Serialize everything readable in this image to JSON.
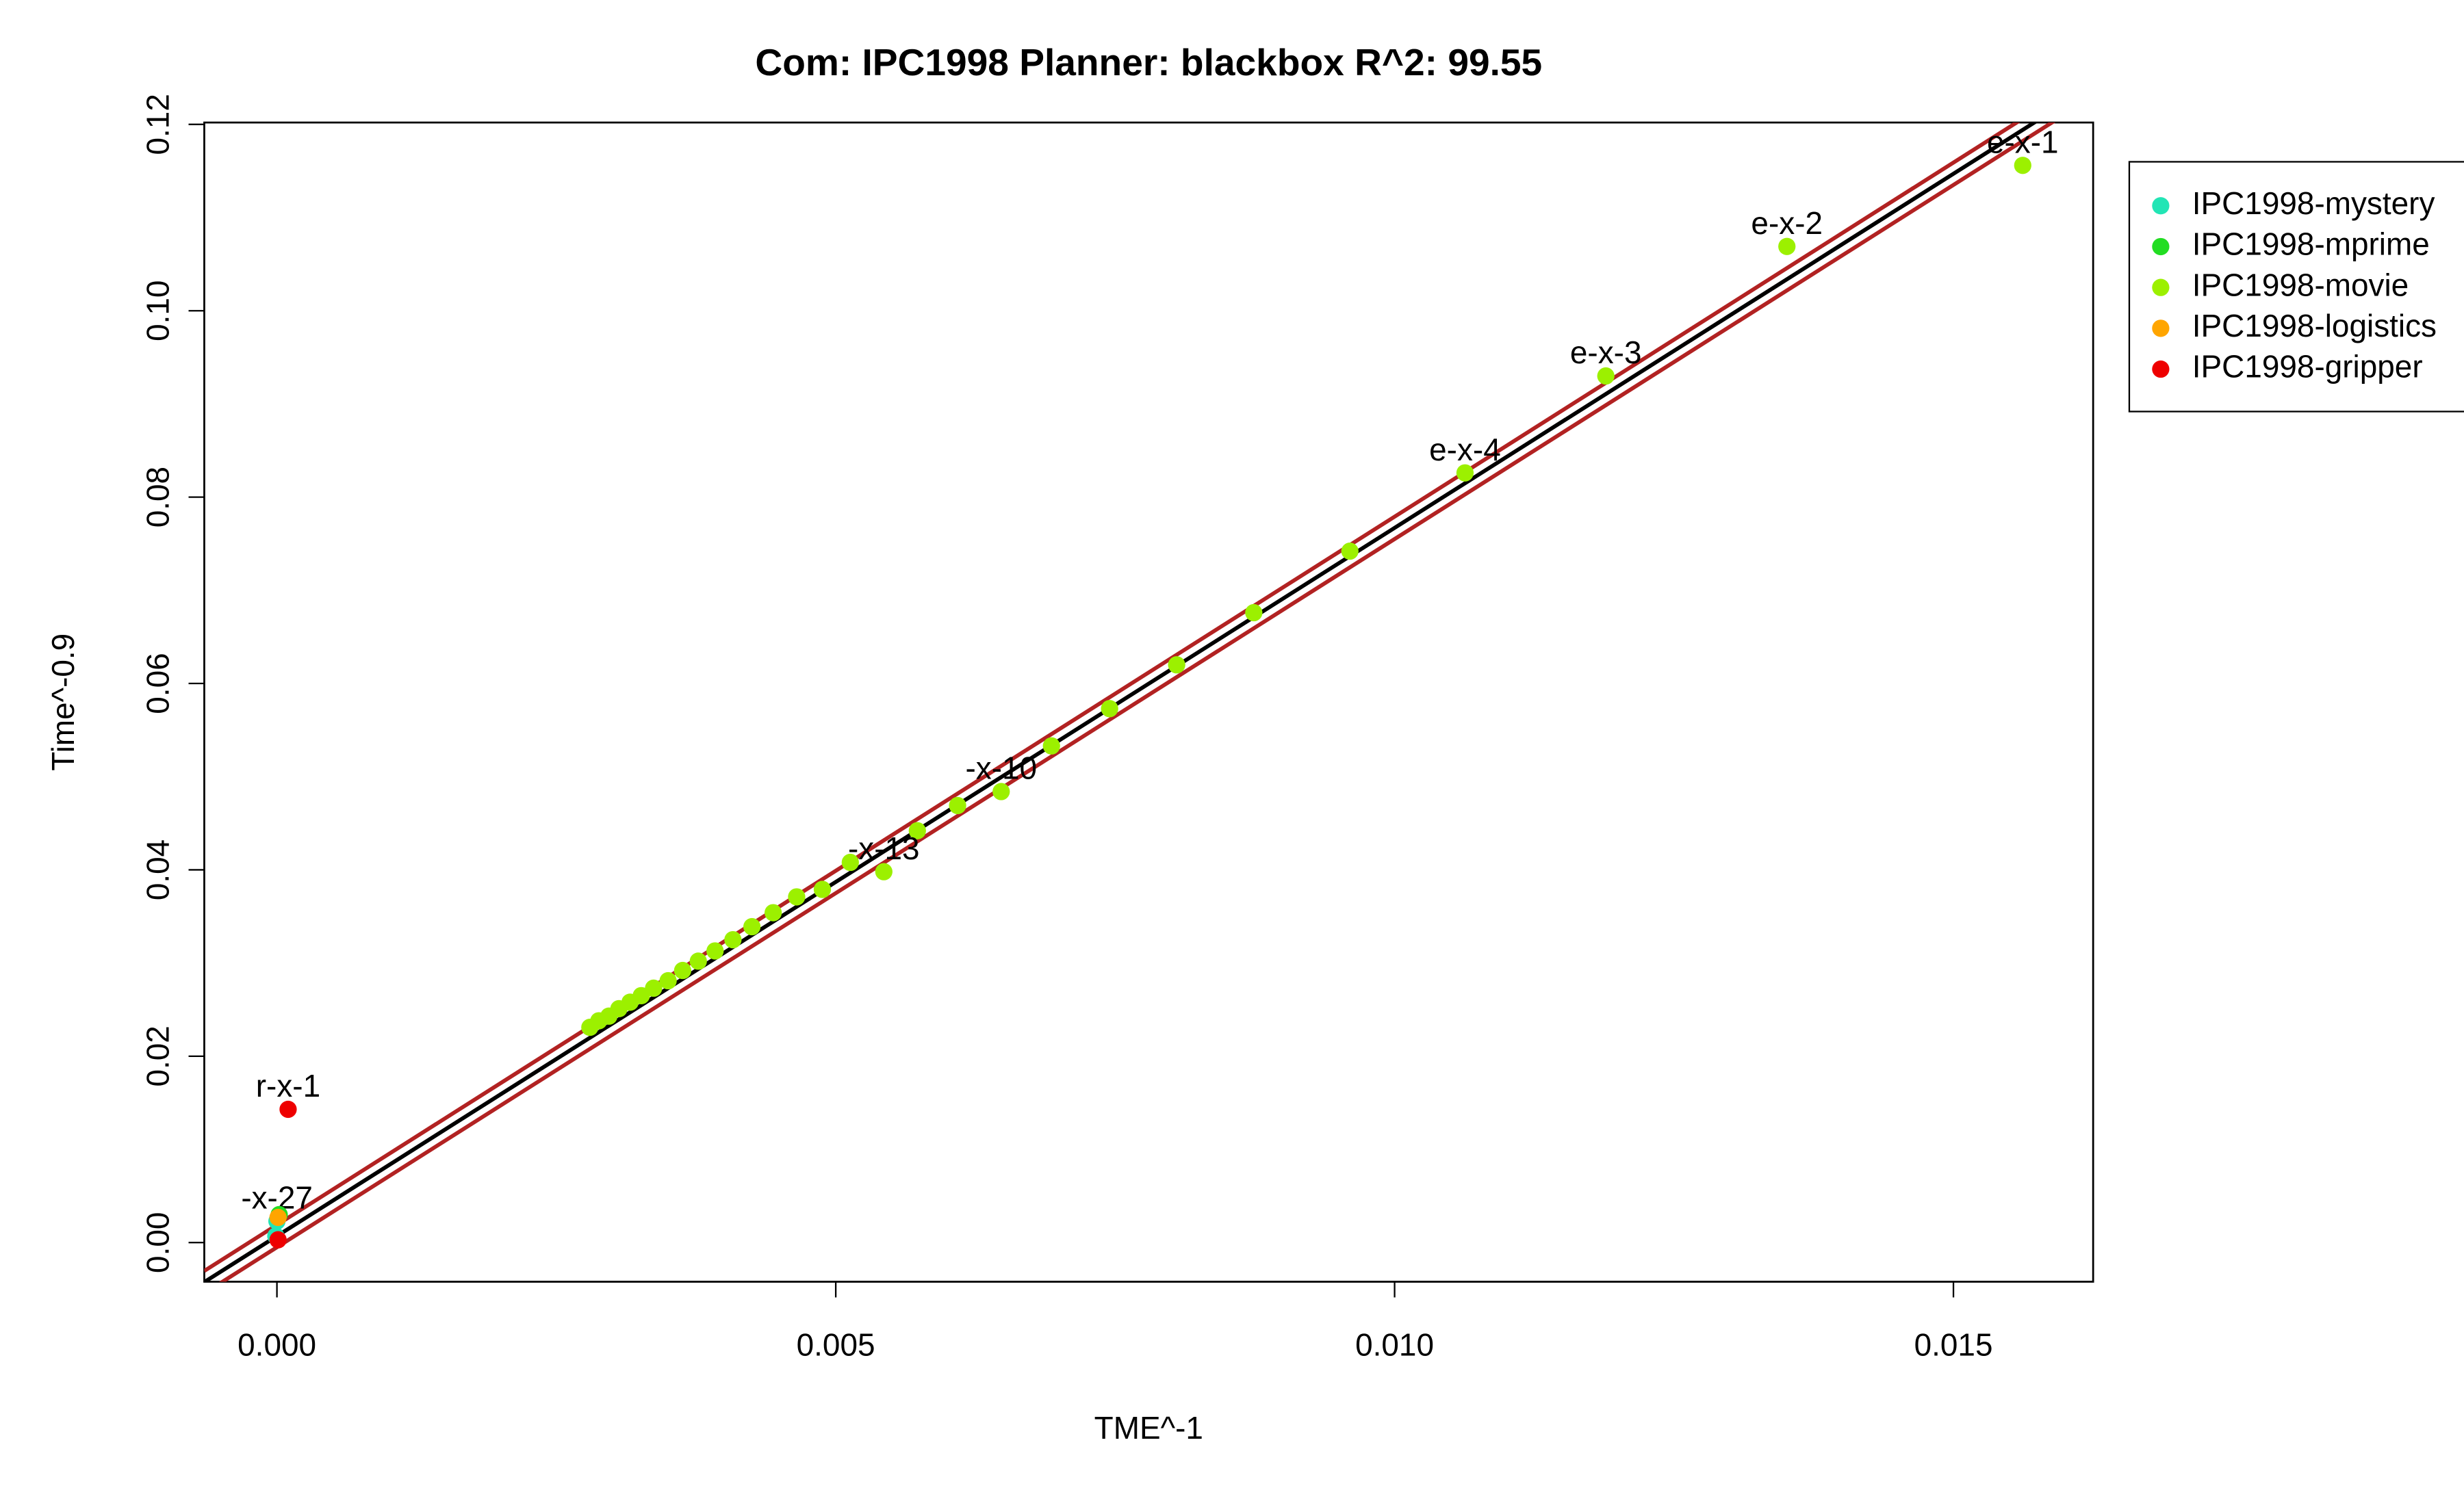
{
  "chart_data": {
    "type": "scatter",
    "title": "Com: IPC1998 Planner: blackbox R^2: 99.55",
    "xlabel": "TME^-1",
    "ylabel": "Time^-0.9",
    "xlim": [
      -0.00065,
      0.01625
    ],
    "ylim": [
      -0.0042,
      0.1202
    ],
    "xticks": [
      {
        "value": 0,
        "label": "0.000"
      },
      {
        "value": 0.005,
        "label": "0.005"
      },
      {
        "value": 0.01,
        "label": "0.010"
      },
      {
        "value": 0.015,
        "label": "0.015"
      }
    ],
    "yticks": [
      {
        "value": 0,
        "label": "0.00"
      },
      {
        "value": 0.02,
        "label": "0.02"
      },
      {
        "value": 0.04,
        "label": "0.04"
      },
      {
        "value": 0.06,
        "label": "0.06"
      },
      {
        "value": 0.08,
        "label": "0.08"
      },
      {
        "value": 0.1,
        "label": "0.10"
      },
      {
        "value": 0.12,
        "label": "0.12"
      }
    ],
    "fit": {
      "intercept": 0.0007,
      "slope": 7.6,
      "band": 0.0012
    },
    "legend": "right",
    "series": [
      {
        "name": "IPC1998-mystery",
        "color": "#22e5b5",
        "x": [
          -1e-05,
          0.0
        ],
        "values": [
          0.0007,
          0.0023
        ],
        "labels": [
          null,
          "-x-27"
        ]
      },
      {
        "name": "IPC1998-mprime",
        "color": "#22dd22",
        "x": [
          2e-05
        ],
        "values": [
          0.003
        ],
        "labels": [
          null
        ]
      },
      {
        "name": "IPC1998-movie",
        "color": "#9cf000",
        "x": [
          0.01562,
          0.01351,
          0.01189,
          0.01063,
          0.0096,
          0.00874,
          0.00805,
          0.00745,
          0.00693,
          0.00648,
          0.00609,
          0.00573,
          0.00543,
          0.00513,
          0.00488,
          0.00465,
          0.00444,
          0.00425,
          0.00408,
          0.00392,
          0.00377,
          0.00363,
          0.0035,
          0.00337,
          0.00326,
          0.00316,
          0.00306,
          0.00297,
          0.00288,
          0.0028
        ],
        "values": [
          0.1156,
          0.1069,
          0.093,
          0.0826,
          0.0742,
          0.0676,
          0.062,
          0.0573,
          0.0533,
          0.0484,
          0.0469,
          0.0442,
          0.0398,
          0.0408,
          0.0379,
          0.0371,
          0.0354,
          0.0339,
          0.0325,
          0.0313,
          0.0302,
          0.0292,
          0.0281,
          0.0273,
          0.0265,
          0.0258,
          0.0251,
          0.0243,
          0.0238,
          0.0231
        ],
        "labels": [
          "e-x-1",
          "e-x-2",
          "e-x-3",
          "e-x-4",
          null,
          null,
          null,
          null,
          null,
          "-x-10",
          null,
          null,
          "-x-13",
          null,
          null,
          null,
          null,
          null,
          null,
          null,
          null,
          null,
          null,
          null,
          null,
          null,
          null,
          null,
          null,
          null
        ]
      },
      {
        "name": "IPC1998-logistics",
        "color": "#ffa500",
        "x": [
          1e-05
        ],
        "values": [
          0.0027
        ],
        "labels": [
          null
        ]
      },
      {
        "name": "IPC1998-gripper",
        "color": "#ee0000",
        "x": [
          0.0001,
          1e-05
        ],
        "values": [
          0.0143,
          0.0003
        ],
        "labels": [
          "r-x-1",
          null
        ]
      }
    ]
  }
}
